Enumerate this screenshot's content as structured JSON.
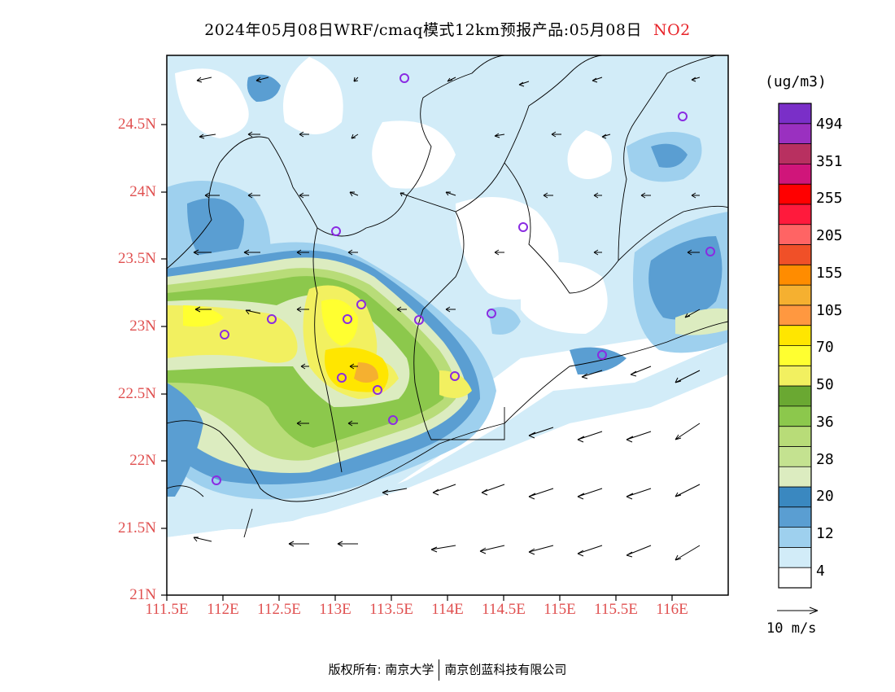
{
  "title": {
    "main": "2024年05月08日WRF/cmaq模式12km预报产品:05月08日",
    "species": "NO2"
  },
  "axes": {
    "lat_labels": [
      "24.5N",
      "24N",
      "23.5N",
      "23N",
      "22.5N",
      "22N",
      "21.5N",
      "21N"
    ],
    "lon_labels": [
      "111.5E",
      "112E",
      "112.5E",
      "113E",
      "113.5E",
      "114E",
      "114.5E",
      "115E",
      "115.5E",
      "116E"
    ]
  },
  "colorbar": {
    "unit": "(ug/m3)",
    "labels": [
      "494",
      "351",
      "255",
      "205",
      "155",
      "105",
      "70",
      "50",
      "36",
      "28",
      "20",
      "12",
      "4"
    ],
    "colors": [
      "#7a2fc8",
      "#9a30c0",
      "#b83060",
      "#d0157a",
      "#ff0000",
      "#ff1a3c",
      "#ff6464",
      "#f05028",
      "#ff8c00",
      "#f5b030",
      "#ff9840",
      "#ffe600",
      "#ffff30",
      "#f2f060",
      "#6aa832",
      "#8cc84c",
      "#b8dc78",
      "#c4e290",
      "#dcecc0",
      "#3a88c0",
      "#5a9ed2",
      "#9ed0ee",
      "#d2ecf8",
      "#ffffff"
    ]
  },
  "vector_legend": "10 m/s",
  "footer": {
    "left": "版权所有: 南京大学",
    "right": "南京创蓝科技有限公司"
  },
  "colors": {
    "label_red": "#e05050",
    "marker": "#8a2be2"
  }
}
